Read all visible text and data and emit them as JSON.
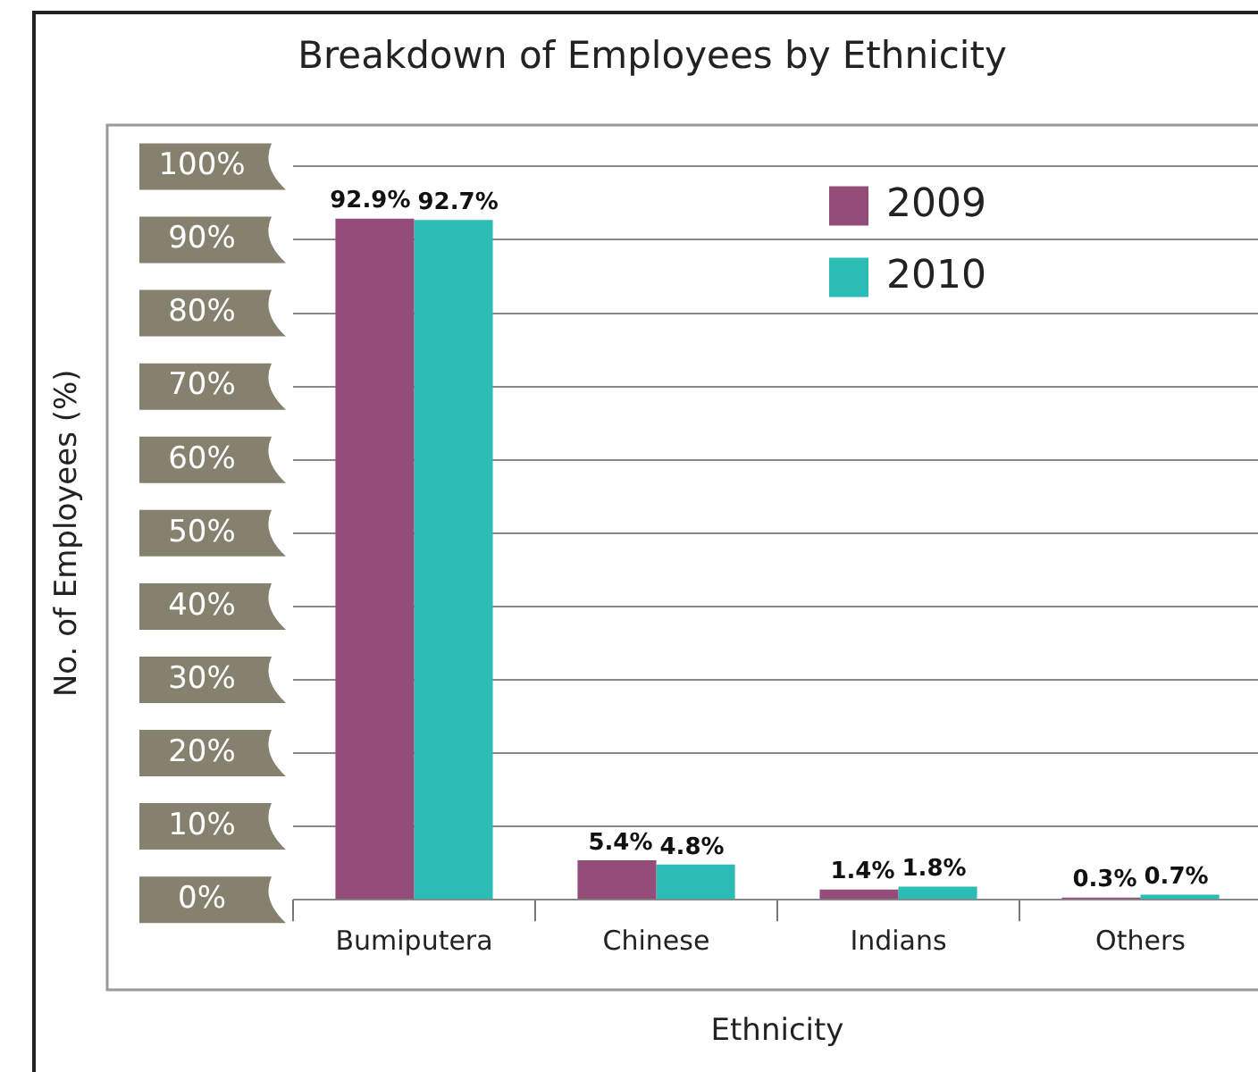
{
  "chart_data": {
    "type": "bar",
    "title": "Breakdown of Employees by Ethnicity",
    "xlabel": "Ethnicity",
    "ylabel": "No. of Employees (%)",
    "categories": [
      "Bumiputera",
      "Chinese",
      "Indians",
      "Others"
    ],
    "series": [
      {
        "name": "2009",
        "color": "#944c78",
        "values": [
          92.9,
          5.4,
          1.4,
          0.3
        ],
        "value_labels": [
          "92.9%",
          "5.4%",
          "1.4%",
          "0.3%"
        ]
      },
      {
        "name": "2010",
        "color": "#2bbdb5",
        "values": [
          92.7,
          4.8,
          1.8,
          0.7
        ],
        "value_labels": [
          "92.7%",
          "4.8%",
          "1.8%",
          "0.7%"
        ]
      }
    ],
    "ylim": [
      0,
      100
    ],
    "yticks": [
      {
        "value": 0,
        "label": "0%"
      },
      {
        "value": 10,
        "label": "10%"
      },
      {
        "value": 20,
        "label": "20%"
      },
      {
        "value": 30,
        "label": "30%"
      },
      {
        "value": 40,
        "label": "40%"
      },
      {
        "value": 50,
        "label": "50%"
      },
      {
        "value": 60,
        "label": "60%"
      },
      {
        "value": 70,
        "label": "70%"
      },
      {
        "value": 80,
        "label": "80%"
      },
      {
        "value": 90,
        "label": "90%"
      },
      {
        "value": 100,
        "label": "100%"
      }
    ],
    "grid": "y",
    "legend": "top right"
  }
}
